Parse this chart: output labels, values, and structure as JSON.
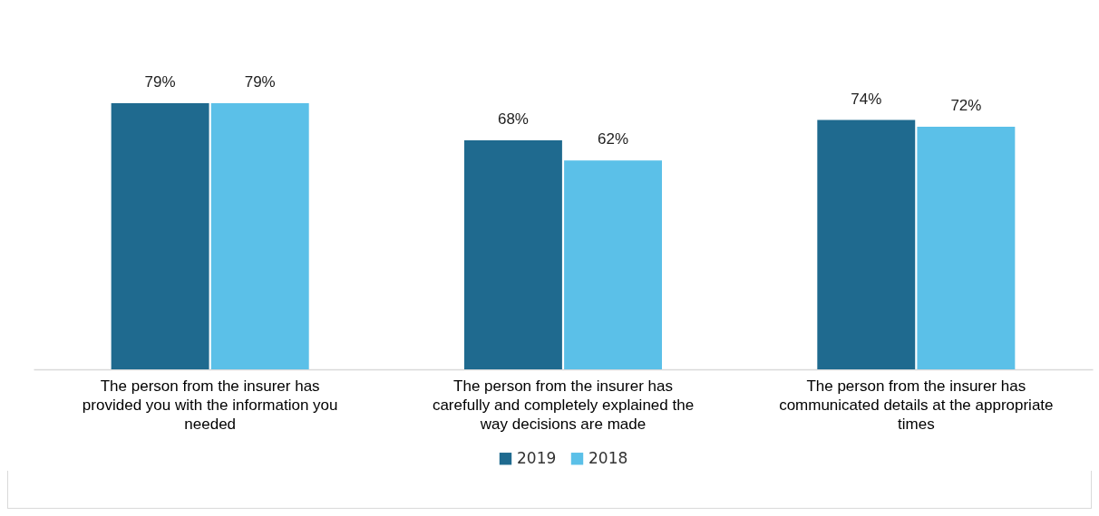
{
  "chart_data": {
    "type": "bar",
    "categories": [
      "The person from the insurer has provided you with the information you needed",
      "The person from the insurer has carefully and completely explained the way decisions are made",
      "The person from the insurer has communicated details at the appropriate times"
    ],
    "series": [
      {
        "name": "2019",
        "color": "#1f6a8f",
        "values": [
          79,
          68,
          74
        ],
        "value_labels": [
          "79%",
          "68%",
          "74%"
        ]
      },
      {
        "name": "2018",
        "color": "#5bc0e8",
        "values": [
          79,
          62,
          72
        ],
        "value_labels": [
          "79%",
          "62%",
          "72%"
        ]
      }
    ],
    "legend": "bottom"
  }
}
